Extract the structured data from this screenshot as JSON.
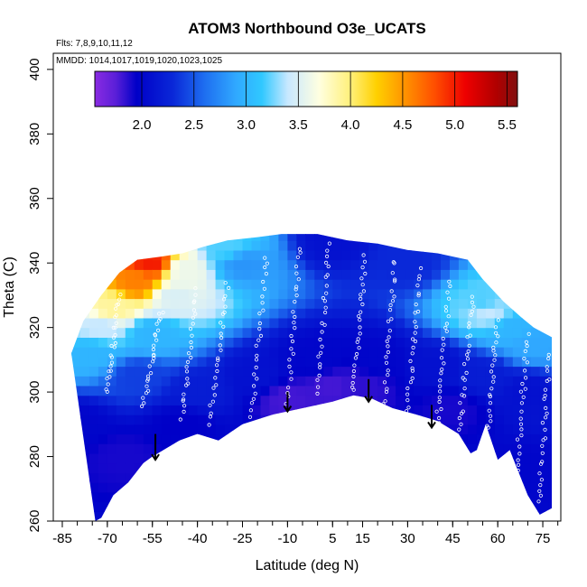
{
  "chart_data": {
    "type": "heatmap",
    "title": "ATOM3 Northbound O3e_UCATS",
    "flights_label": "Flts: 7,8,9,10,11,12",
    "dates_label": "MMDD: 1014,1017,1019,1020,1023,1025",
    "xlabel": "Latitude (deg N)",
    "ylabel": "Theta (C)",
    "xlim": [
      -88,
      81
    ],
    "ylim": [
      260,
      405
    ],
    "x_ticks": [
      -85,
      -70,
      -55,
      -40,
      -25,
      -10,
      5,
      15,
      30,
      45,
      60,
      75
    ],
    "x_minor_step": 5,
    "y_ticks": [
      260,
      280,
      300,
      320,
      340,
      360,
      380,
      400
    ],
    "colorbar": {
      "min": 1.55,
      "max": 5.6,
      "ticks": [
        "2.0",
        "2.5",
        "3.0",
        "3.5",
        "4.0",
        "4.5",
        "5.0",
        "5.5"
      ],
      "tick_values": [
        2.0,
        2.5,
        3.0,
        3.5,
        4.0,
        4.5,
        5.0,
        5.5
      ],
      "colors": [
        {
          "v": 1.55,
          "c": "#8a2be2"
        },
        {
          "v": 1.75,
          "c": "#5a1fd8"
        },
        {
          "v": 1.95,
          "c": "#0000c8"
        },
        {
          "v": 2.3,
          "c": "#0a28d8"
        },
        {
          "v": 2.6,
          "c": "#1e6ef0"
        },
        {
          "v": 2.9,
          "c": "#30a8ff"
        },
        {
          "v": 3.15,
          "c": "#30c8ff"
        },
        {
          "v": 3.4,
          "c": "#c8e8ff"
        },
        {
          "v": 3.7,
          "c": "#ffffe0"
        },
        {
          "v": 4.0,
          "c": "#fff07a"
        },
        {
          "v": 4.25,
          "c": "#ffd000"
        },
        {
          "v": 4.55,
          "c": "#ff8c00"
        },
        {
          "v": 4.8,
          "c": "#ff5000"
        },
        {
          "v": 5.1,
          "c": "#ee0000"
        },
        {
          "v": 5.4,
          "c": "#b00000"
        },
        {
          "v": 5.6,
          "c": "#801010"
        }
      ]
    },
    "domain_top": [
      [
        -82,
        312
      ],
      [
        -78,
        322
      ],
      [
        -72,
        330
      ],
      [
        -66,
        337
      ],
      [
        -60,
        341
      ],
      [
        -52,
        342
      ],
      [
        -45,
        343
      ],
      [
        -38,
        345
      ],
      [
        -30,
        347
      ],
      [
        -20,
        348
      ],
      [
        -12,
        349
      ],
      [
        0,
        349
      ],
      [
        10,
        347
      ],
      [
        20,
        346
      ],
      [
        30,
        344
      ],
      [
        40,
        343
      ],
      [
        50,
        341
      ],
      [
        55,
        335
      ],
      [
        62,
        328
      ],
      [
        68,
        323
      ],
      [
        72,
        320
      ],
      [
        78,
        317
      ]
    ],
    "domain_bottom": [
      [
        78,
        264
      ],
      [
        74,
        262
      ],
      [
        70,
        268
      ],
      [
        64,
        282
      ],
      [
        60,
        279
      ],
      [
        56,
        290
      ],
      [
        53,
        282
      ],
      [
        51,
        281
      ],
      [
        47,
        287
      ],
      [
        40,
        291
      ],
      [
        33,
        293
      ],
      [
        25,
        295
      ],
      [
        18,
        298
      ],
      [
        12,
        299
      ],
      [
        5,
        297
      ],
      [
        -5,
        295
      ],
      [
        -15,
        293
      ],
      [
        -25,
        290
      ],
      [
        -33,
        285
      ],
      [
        -40,
        287
      ],
      [
        -46,
        285
      ],
      [
        -55,
        280
      ],
      [
        -58,
        278
      ],
      [
        -63,
        272
      ],
      [
        -68,
        268
      ],
      [
        -72,
        261
      ],
      [
        -74,
        260
      ]
    ],
    "ozone_field": [
      {
        "lat": -55,
        "theta": 340,
        "value": 5.0
      },
      {
        "lat": -60,
        "theta": 334,
        "value": 4.6
      },
      {
        "lat": -68,
        "theta": 326,
        "value": 3.9
      },
      {
        "lat": -72,
        "theta": 320,
        "value": 3.4
      },
      {
        "lat": -45,
        "theta": 338,
        "value": 3.6
      },
      {
        "lat": -48,
        "theta": 330,
        "value": 3.5
      },
      {
        "lat": -55,
        "theta": 318,
        "value": 3.0
      },
      {
        "lat": -75,
        "theta": 312,
        "value": 3.0
      },
      {
        "lat": -30,
        "theta": 345,
        "value": 3.2
      },
      {
        "lat": -25,
        "theta": 340,
        "value": 2.8
      },
      {
        "lat": 5,
        "theta": 347,
        "value": 2.1
      },
      {
        "lat": 30,
        "theta": 340,
        "value": 2.3
      },
      {
        "lat": 55,
        "theta": 328,
        "value": 3.2
      },
      {
        "lat": 57,
        "theta": 325,
        "value": 3.4
      },
      {
        "lat": 65,
        "theta": 320,
        "value": 3.0
      },
      {
        "lat": 72,
        "theta": 315,
        "value": 2.9
      },
      {
        "lat": -60,
        "theta": 305,
        "value": 2.4
      },
      {
        "lat": -40,
        "theta": 300,
        "value": 2.2
      },
      {
        "lat": -20,
        "theta": 305,
        "value": 2.1
      },
      {
        "lat": 0,
        "theta": 310,
        "value": 2.0
      },
      {
        "lat": 20,
        "theta": 310,
        "value": 2.0
      },
      {
        "lat": 40,
        "theta": 308,
        "value": 2.1
      },
      {
        "lat": 55,
        "theta": 305,
        "value": 2.2
      },
      {
        "lat": 70,
        "theta": 300,
        "value": 2.1
      },
      {
        "lat": -10,
        "theta": 298,
        "value": 1.8
      },
      {
        "lat": 5,
        "theta": 302,
        "value": 1.8
      },
      {
        "lat": 15,
        "theta": 302,
        "value": 1.85
      },
      {
        "lat": -65,
        "theta": 280,
        "value": 1.9
      },
      {
        "lat": -45,
        "theta": 290,
        "value": 1.95
      },
      {
        "lat": 45,
        "theta": 295,
        "value": 1.9
      },
      {
        "lat": 70,
        "theta": 275,
        "value": 2.0
      },
      {
        "lat": -80,
        "theta": 290,
        "value": 2.0
      }
    ],
    "arrows": [
      {
        "lat": -54,
        "theta_from": 287,
        "theta_to": 279
      },
      {
        "lat": -10,
        "theta_from": 300,
        "theta_to": 294
      },
      {
        "lat": 17,
        "theta_from": 304,
        "theta_to": 297
      },
      {
        "lat": 38,
        "theta_from": 296,
        "theta_to": 289
      }
    ],
    "profiles": [
      {
        "lat_start": -70,
        "lat_end": -66,
        "theta_start": 300,
        "theta_end": 330
      },
      {
        "lat_start": -58,
        "lat_end": -52,
        "theta_start": 296,
        "theta_end": 325
      },
      {
        "lat_start": -45,
        "lat_end": -40,
        "theta_start": 292,
        "theta_end": 332
      },
      {
        "lat_start": -36,
        "lat_end": -30,
        "theta_start": 290,
        "theta_end": 334
      },
      {
        "lat_start": -22,
        "lat_end": -17,
        "theta_start": 292,
        "theta_end": 342
      },
      {
        "lat_start": -10,
        "lat_end": -6,
        "theta_start": 296,
        "theta_end": 345
      },
      {
        "lat_start": 0,
        "lat_end": 4,
        "theta_start": 300,
        "theta_end": 346
      },
      {
        "lat_start": 12,
        "lat_end": 16,
        "theta_start": 300,
        "theta_end": 342
      },
      {
        "lat_start": 22,
        "lat_end": 26,
        "theta_start": 296,
        "theta_end": 341
      },
      {
        "lat_start": 30,
        "lat_end": 34,
        "theta_start": 294,
        "theta_end": 338
      },
      {
        "lat_start": 40,
        "lat_end": 44,
        "theta_start": 290,
        "theta_end": 334
      },
      {
        "lat_start": 47,
        "lat_end": 52,
        "theta_start": 288,
        "theta_end": 330
      },
      {
        "lat_start": 56,
        "lat_end": 60,
        "theta_start": 282,
        "theta_end": 322
      },
      {
        "lat_start": 66,
        "lat_end": 70,
        "theta_start": 272,
        "theta_end": 318
      },
      {
        "lat_start": 74,
        "lat_end": 77,
        "theta_start": 266,
        "theta_end": 312
      }
    ],
    "grid": false,
    "legend": "colorbar-top"
  }
}
